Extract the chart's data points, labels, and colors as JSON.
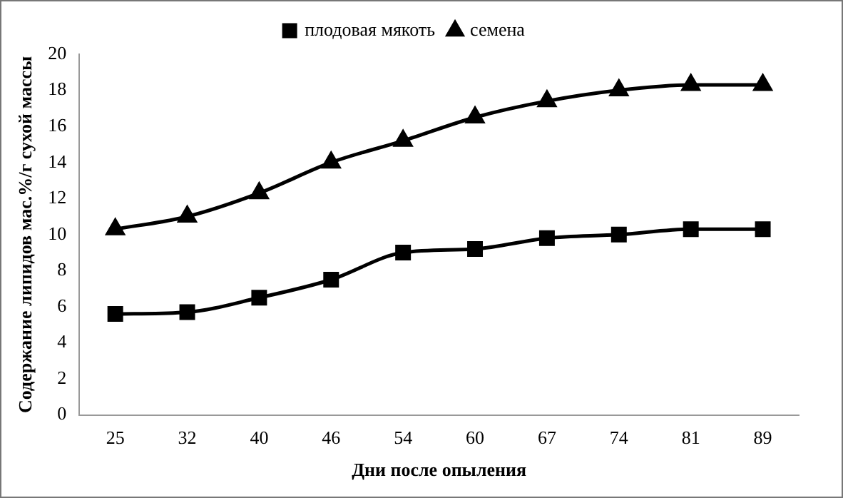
{
  "chart_data": {
    "type": "line",
    "xlabel": "Дни после опыления",
    "ylabel": "Содержание липидов мас.%/г сухой массы",
    "categories": [
      "25",
      "32",
      "40",
      "46",
      "54",
      "60",
      "67",
      "74",
      "81",
      "89"
    ],
    "series": [
      {
        "name": "плодовая мякоть",
        "color": "#000000",
        "marker": "square",
        "values": [
          5.6,
          5.7,
          6.5,
          7.5,
          9.0,
          9.2,
          9.8,
          10.0,
          10.3,
          10.3
        ]
      },
      {
        "name": "семена",
        "color": "#000000",
        "marker": "triangle",
        "values": [
          10.3,
          11.0,
          12.3,
          14.0,
          15.2,
          16.5,
          17.4,
          18.0,
          18.3,
          18.3
        ]
      }
    ],
    "ylim": [
      0,
      20
    ],
    "yticks": [
      0,
      2,
      4,
      6,
      8,
      10,
      12,
      14,
      16,
      18,
      20
    ],
    "grid": false,
    "legend": "top"
  }
}
